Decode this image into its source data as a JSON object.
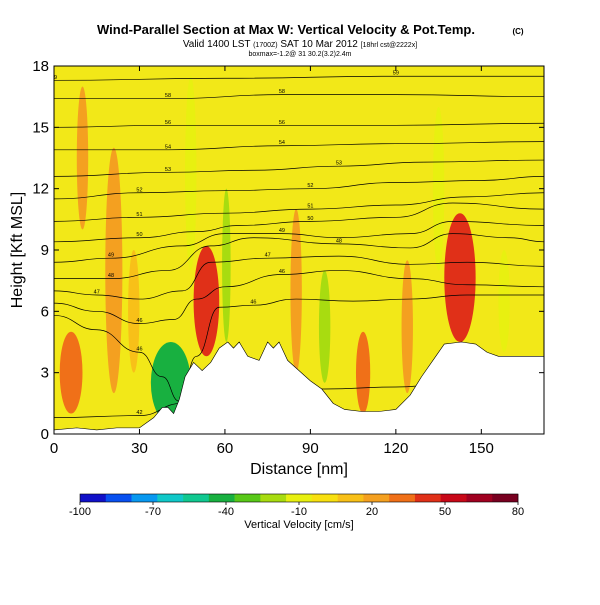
{
  "header": {
    "title": "Wind-Parallel Section at Max W: Vertical Velocity & Pot.Temp.",
    "copyright": "(C)",
    "valid_main": "Valid 1400 LST",
    "valid_utc": "(1700Z)",
    "valid_date": "SAT 10 Mar 2012",
    "forecast": "[18hrl cst@2222x]",
    "subline": "boxmax=-1.2@ 31 30.2(3.2)2.4m"
  },
  "chart_data": {
    "type": "heatmap",
    "title": "Wind-Parallel Section at Max W: Vertical Velocity & Pot.Temp.",
    "xlabel": "Distance [nm]",
    "ylabel": "Height [Kft MSL]",
    "xlim": [
      0,
      172
    ],
    "ylim": [
      0,
      18
    ],
    "xticks": [
      "0",
      "30",
      "60",
      "90",
      "120",
      "150"
    ],
    "yticks": [
      "0",
      "3",
      "6",
      "9",
      "12",
      "15",
      "18"
    ],
    "colorbar": {
      "label": "Vertical Velocity [cm/s]",
      "ticks": [
        "-100",
        "-70",
        "-40",
        "-10",
        "20",
        "50",
        "80"
      ],
      "min": -100,
      "max": 80,
      "colors": [
        "#1010c8",
        "#0850f0",
        "#0898f0",
        "#10c8c8",
        "#10c890",
        "#18b040",
        "#58c818",
        "#a8dc10",
        "#e8f010",
        "#f8e010",
        "#f8c018",
        "#f4a020",
        "#f07018",
        "#e03018",
        "#c80818",
        "#a00020",
        "#780020"
      ]
    },
    "terrain_kft": [
      [
        0,
        0.2
      ],
      [
        8,
        0.3
      ],
      [
        15,
        0.2
      ],
      [
        22,
        0.3
      ],
      [
        30,
        0.3
      ],
      [
        35,
        0.8
      ],
      [
        38,
        1.3
      ],
      [
        40,
        1.3
      ],
      [
        42,
        1.0
      ],
      [
        44,
        1.7
      ],
      [
        46,
        2.8
      ],
      [
        49,
        3.5
      ],
      [
        52,
        3.1
      ],
      [
        55,
        3.5
      ],
      [
        58,
        4.2
      ],
      [
        61,
        4.5
      ],
      [
        63,
        4.2
      ],
      [
        65,
        4.5
      ],
      [
        68,
        3.8
      ],
      [
        72,
        3.6
      ],
      [
        75,
        4.5
      ],
      [
        77,
        4.2
      ],
      [
        79,
        4.5
      ],
      [
        82,
        3.6
      ],
      [
        86,
        3.1
      ],
      [
        90,
        2.6
      ],
      [
        94,
        2.2
      ],
      [
        98,
        1.5
      ],
      [
        102,
        1.2
      ],
      [
        108,
        1.1
      ],
      [
        114,
        1.1
      ],
      [
        120,
        1.2
      ],
      [
        125,
        1.9
      ],
      [
        129,
        2.8
      ],
      [
        133,
        3.6
      ],
      [
        137,
        4.4
      ],
      [
        143,
        4.5
      ],
      [
        148,
        4.4
      ],
      [
        152,
        4.0
      ],
      [
        156,
        3.8
      ],
      [
        162,
        3.8
      ],
      [
        168,
        3.8
      ],
      [
        172,
        3.8
      ]
    ],
    "isentropes": [
      {
        "label": "42",
        "points": [
          [
            0,
            0.8
          ],
          [
            30,
            0.9
          ],
          [
            45,
            1.5
          ],
          [
            60,
            2.3
          ],
          [
            75,
            2.5
          ],
          [
            95,
            2.2
          ],
          [
            120,
            2.3
          ],
          [
            145,
            2.6
          ],
          [
            172,
            2.5
          ]
        ]
      },
      {
        "label": "46",
        "points": [
          [
            0,
            5.8
          ],
          [
            15,
            5.1
          ],
          [
            30,
            4.0
          ],
          [
            38,
            2.8
          ],
          [
            44,
            1.6
          ],
          [
            50,
            3.8
          ],
          [
            58,
            6.2
          ],
          [
            70,
            6.3
          ],
          [
            85,
            6.6
          ],
          [
            105,
            6.5
          ],
          [
            125,
            6.6
          ],
          [
            145,
            6.8
          ],
          [
            172,
            6.8
          ]
        ]
      },
      {
        "label": "46",
        "points": [
          [
            0,
            6.4
          ],
          [
            15,
            6.0
          ],
          [
            30,
            5.4
          ],
          [
            42,
            5.6
          ],
          [
            50,
            6.6
          ],
          [
            60,
            7.2
          ],
          [
            80,
            7.8
          ],
          [
            100,
            8.0
          ],
          [
            125,
            7.6
          ],
          [
            145,
            7.3
          ],
          [
            172,
            7.2
          ]
        ]
      },
      {
        "label": "47",
        "points": [
          [
            0,
            7.0
          ],
          [
            15,
            6.8
          ],
          [
            30,
            6.6
          ],
          [
            45,
            7.0
          ],
          [
            55,
            8.4
          ],
          [
            75,
            8.6
          ],
          [
            100,
            8.7
          ],
          [
            125,
            8.3
          ],
          [
            145,
            8.4
          ],
          [
            172,
            8.2
          ]
        ]
      },
      {
        "label": "48",
        "points": [
          [
            0,
            7.6
          ],
          [
            20,
            7.6
          ],
          [
            40,
            8.0
          ],
          [
            55,
            9.2
          ],
          [
            70,
            9.6
          ],
          [
            100,
            9.3
          ],
          [
            125,
            9.1
          ],
          [
            140,
            9.8
          ],
          [
            160,
            9.6
          ],
          [
            172,
            9.4
          ]
        ]
      },
      {
        "label": "49",
        "points": [
          [
            0,
            8.4
          ],
          [
            20,
            8.6
          ],
          [
            45,
            9.2
          ],
          [
            60,
            9.8
          ],
          [
            80,
            9.8
          ],
          [
            100,
            9.6
          ],
          [
            125,
            9.8
          ],
          [
            140,
            10.4
          ],
          [
            172,
            10.2
          ]
        ]
      },
      {
        "label": "50",
        "points": [
          [
            0,
            9.4
          ],
          [
            30,
            9.6
          ],
          [
            50,
            9.9
          ],
          [
            65,
            10.2
          ],
          [
            90,
            10.4
          ],
          [
            120,
            10.6
          ],
          [
            140,
            11.3
          ],
          [
            172,
            11.0
          ]
        ]
      },
      {
        "label": "51",
        "points": [
          [
            0,
            10.4
          ],
          [
            30,
            10.6
          ],
          [
            60,
            10.8
          ],
          [
            90,
            11.0
          ],
          [
            120,
            11.2
          ],
          [
            145,
            11.6
          ],
          [
            172,
            11.8
          ]
        ]
      },
      {
        "label": "52",
        "points": [
          [
            0,
            11.5
          ],
          [
            30,
            11.8
          ],
          [
            60,
            11.9
          ],
          [
            90,
            12.0
          ],
          [
            120,
            12.3
          ],
          [
            150,
            12.4
          ],
          [
            172,
            12.6
          ]
        ]
      },
      {
        "label": "53",
        "points": [
          [
            0,
            12.6
          ],
          [
            40,
            12.8
          ],
          [
            70,
            12.9
          ],
          [
            100,
            13.1
          ],
          [
            130,
            13.3
          ],
          [
            172,
            13.4
          ]
        ]
      },
      {
        "label": "54",
        "points": [
          [
            0,
            13.9
          ],
          [
            40,
            13.9
          ],
          [
            80,
            14.1
          ],
          [
            120,
            14.2
          ],
          [
            172,
            14.3
          ]
        ]
      },
      {
        "label": "56",
        "points": [
          [
            0,
            15.0
          ],
          [
            40,
            15.1
          ],
          [
            80,
            15.1
          ],
          [
            120,
            15.1
          ],
          [
            172,
            15.2
          ]
        ]
      },
      {
        "label": "58",
        "points": [
          [
            0,
            16.4
          ],
          [
            40,
            16.4
          ],
          [
            80,
            16.6
          ],
          [
            120,
            16.6
          ],
          [
            172,
            16.5
          ]
        ]
      },
      {
        "label": "59",
        "points": [
          [
            0,
            17.3
          ],
          [
            60,
            17.4
          ],
          [
            120,
            17.5
          ],
          [
            172,
            17.5
          ]
        ]
      }
    ],
    "velocity_cells": [
      {
        "label": "descent-core-40nm",
        "x": [
          38,
          45
        ],
        "y": [
          0.8,
          3.0
        ],
        "value": -70
      },
      {
        "label": "descent-edge-40nm",
        "x": [
          34,
          48
        ],
        "y": [
          0.5,
          4.5
        ],
        "value": -40
      },
      {
        "label": "ascent-core-54nm",
        "x": [
          51,
          56
        ],
        "y": [
          4.0,
          8.5
        ],
        "value": 60
      },
      {
        "label": "ascent-edge-54nm",
        "x": [
          49,
          58
        ],
        "y": [
          3.8,
          9.2
        ],
        "value": 40
      },
      {
        "label": "ascent-core-143nm",
        "x": [
          140,
          146
        ],
        "y": [
          4.5,
          10.0
        ],
        "value": 70
      },
      {
        "label": "ascent-edge-143nm",
        "x": [
          137,
          148
        ],
        "y": [
          4.5,
          10.8
        ],
        "value": 40
      },
      {
        "label": "wave-band-20nm",
        "x": [
          18,
          24
        ],
        "y": [
          2.0,
          14.0
        ],
        "value": 25
      },
      {
        "label": "wave-band-28nm",
        "x": [
          26,
          30
        ],
        "y": [
          3.0,
          9.0
        ],
        "value": 10
      },
      {
        "label": "wave-band-48nm",
        "x": [
          46,
          50
        ],
        "y": [
          8.0,
          17.5
        ],
        "value": -10
      },
      {
        "label": "wave-band-60nm",
        "x": [
          59,
          62
        ],
        "y": [
          4.5,
          12.0
        ],
        "value": -20
      },
      {
        "label": "wave-band-85nm",
        "x": [
          83,
          87
        ],
        "y": [
          3.0,
          11.0
        ],
        "value": 25
      },
      {
        "label": "wave-band-95nm",
        "x": [
          93,
          97
        ],
        "y": [
          2.5,
          8.0
        ],
        "value": -20
      },
      {
        "label": "wave-band-108nm",
        "x": [
          106,
          111
        ],
        "y": [
          1.0,
          5.0
        ],
        "value": 35
      },
      {
        "label": "wave-band-125nm",
        "x": [
          122,
          126
        ],
        "y": [
          2.0,
          8.5
        ],
        "value": 25
      },
      {
        "label": "wave-band-135nm",
        "x": [
          133,
          137
        ],
        "y": [
          8.0,
          16.0
        ],
        "value": -10
      },
      {
        "label": "wave-band-158nm",
        "x": [
          156,
          160
        ],
        "y": [
          4.0,
          9.0
        ],
        "value": -10
      },
      {
        "label": "wave-band-10nm",
        "x": [
          8,
          12
        ],
        "y": [
          10.0,
          17.0
        ],
        "value": 25
      },
      {
        "label": "surface-left-5nm",
        "x": [
          2,
          10
        ],
        "y": [
          1.0,
          5.0
        ],
        "value": 30
      }
    ]
  }
}
